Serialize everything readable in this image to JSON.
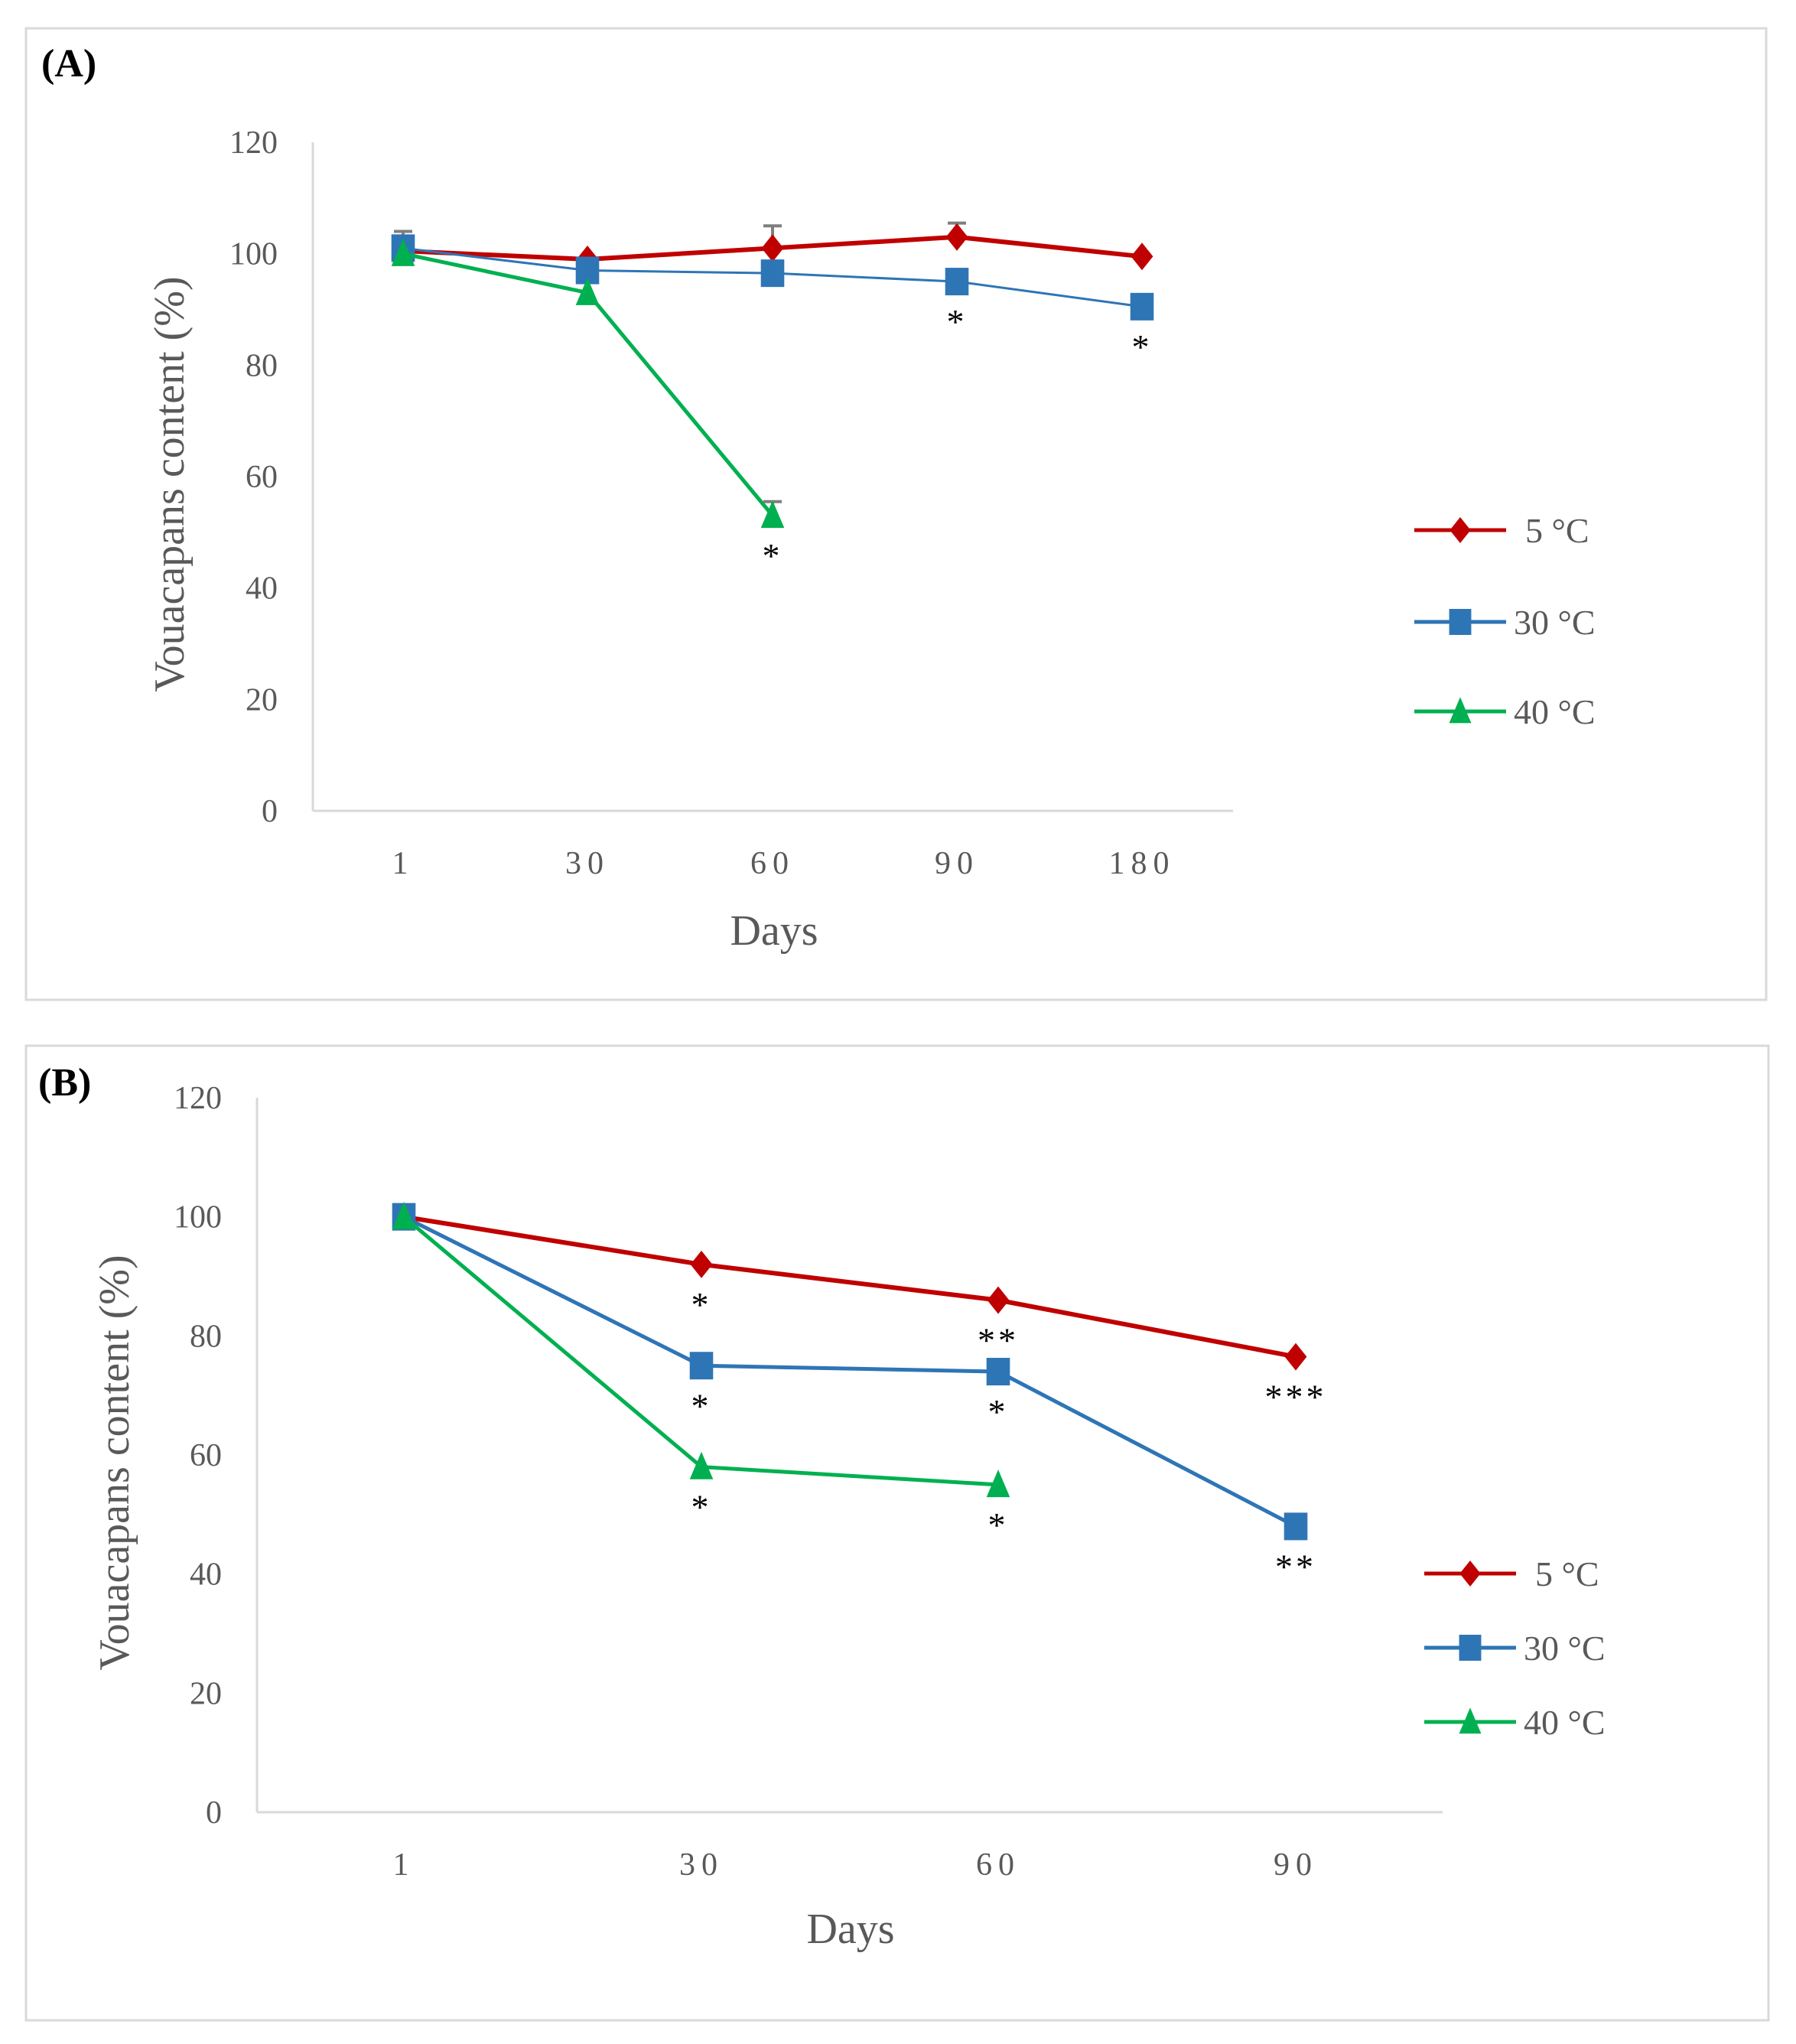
{
  "chart_data": [
    {
      "type": "line",
      "panel_label": "(A)",
      "xlabel": "Days",
      "ylabel": "Vouacapans content (%)",
      "categories": [
        "1",
        "30",
        "60",
        "90",
        "180"
      ],
      "ylim": [
        0,
        120
      ],
      "yticks": [
        0,
        20,
        40,
        60,
        80,
        100,
        120
      ],
      "grid": false,
      "legend_position": "right",
      "series": [
        {
          "name": "5 °C",
          "color": "#C00000",
          "marker": "diamond",
          "values": [
            100.5,
            99,
            101,
            103,
            99.5
          ],
          "errors": [
            0,
            0,
            4,
            2.5,
            0
          ],
          "significance": [
            "",
            "",
            "",
            "",
            ""
          ]
        },
        {
          "name": "30 °C",
          "color": "#2E75B6",
          "marker": "square",
          "values": [
            101,
            97,
            96.5,
            95,
            90.5
          ],
          "errors": [
            3,
            0,
            0,
            0,
            0
          ],
          "significance": [
            "",
            "",
            "",
            "*",
            "*"
          ]
        },
        {
          "name": "40 °C",
          "color": "#00B050",
          "marker": "triangle",
          "values": [
            100,
            93,
            53,
            null,
            null
          ],
          "errors": [
            0,
            0,
            2.5,
            0,
            0
          ],
          "significance": [
            "",
            "",
            "*",
            "",
            ""
          ]
        }
      ]
    },
    {
      "type": "line",
      "panel_label": "(B)",
      "xlabel": "Days",
      "ylabel": "Vouacapans content (%)",
      "categories": [
        "1",
        "30",
        "60",
        "90"
      ],
      "ylim": [
        0,
        120
      ],
      "yticks": [
        0,
        20,
        40,
        60,
        80,
        100,
        120
      ],
      "grid": false,
      "legend_position": "right",
      "series": [
        {
          "name": "5 °C",
          "color": "#C00000",
          "marker": "diamond",
          "values": [
            100,
            92,
            86,
            76.5
          ],
          "errors": [
            0,
            0,
            0,
            0
          ],
          "significance": [
            "",
            "*",
            "**",
            "***"
          ]
        },
        {
          "name": "30 °C",
          "color": "#2E75B6",
          "marker": "square",
          "values": [
            100,
            75,
            74,
            48
          ],
          "errors": [
            0,
            0,
            0,
            0
          ],
          "significance": [
            "",
            "*",
            "*",
            "**"
          ]
        },
        {
          "name": "40 °C",
          "color": "#00B050",
          "marker": "triangle",
          "values": [
            100,
            58,
            55,
            null
          ],
          "errors": [
            0,
            0,
            0,
            0
          ],
          "significance": [
            "",
            "*",
            "*",
            ""
          ]
        }
      ]
    }
  ]
}
